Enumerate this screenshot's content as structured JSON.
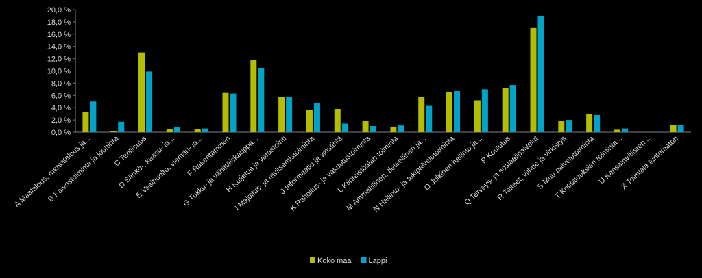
{
  "chart_data": {
    "type": "bar",
    "title": "",
    "xlabel": "",
    "ylabel": "",
    "ylim": [
      0,
      20
    ],
    "yticks": [
      "0,0 %",
      "2,0 %",
      "4,0 %",
      "6,0 %",
      "8,0 %",
      "10,0 %",
      "12,0 %",
      "14,0 %",
      "16,0 %",
      "18,0 %",
      "20,0 %"
    ],
    "grid": false,
    "legend_position": "bottom",
    "categories": [
      "A    Maatalous, metsätalous ja...",
      "B  Kaivostoiminta ja louhinta",
      "C    Teollisuus",
      "D    Sähkö-, kaasu- ja...",
      "E  Vesihuolto, viemäri- ja...",
      "F    Rakentaminen",
      "G  Tukku- ja vähittäiskauppa...",
      "H  Kuljetus ja varastointi",
      "I  Majoitus- ja ravitsemistoiminta",
      "J  Informaatio ja viestintä",
      "K  Rahoitus- ja vakuutustoiminta",
      "L  Kiinteistöalan toiminta",
      "M  Ammatillinen, tieteellinen ja...",
      "N  Hallinto- ja tukipalvelutoiminta",
      "O  Julkinen hallinto ja...",
      "P    Koulutus",
      "Q  Terveys- ja sosiaalipalvelut",
      "R  Taiteet, viihde ja virkistys",
      "S  Muu palvelutoiminta",
      "T  Kotitalouksien toiminta...",
      "U    Kansainvälisten...",
      "X  Toimiala tuntematon"
    ],
    "series": [
      {
        "name": "Koko maa",
        "color": "#b5bd00",
        "values": [
          3.3,
          0.2,
          13.0,
          0.5,
          0.5,
          6.4,
          11.8,
          5.8,
          3.6,
          3.8,
          1.9,
          0.9,
          5.7,
          6.6,
          5.2,
          7.2,
          17.0,
          1.9,
          3.0,
          0.4,
          0.0,
          1.2
        ]
      },
      {
        "name": "Lappi",
        "color": "#00a3c7",
        "values": [
          5.0,
          1.7,
          9.9,
          0.8,
          0.6,
          6.3,
          10.5,
          5.7,
          4.8,
          1.4,
          1.0,
          1.1,
          4.3,
          6.7,
          7.0,
          7.7,
          19.0,
          2.0,
          2.8,
          0.6,
          0.0,
          1.2
        ]
      }
    ]
  }
}
